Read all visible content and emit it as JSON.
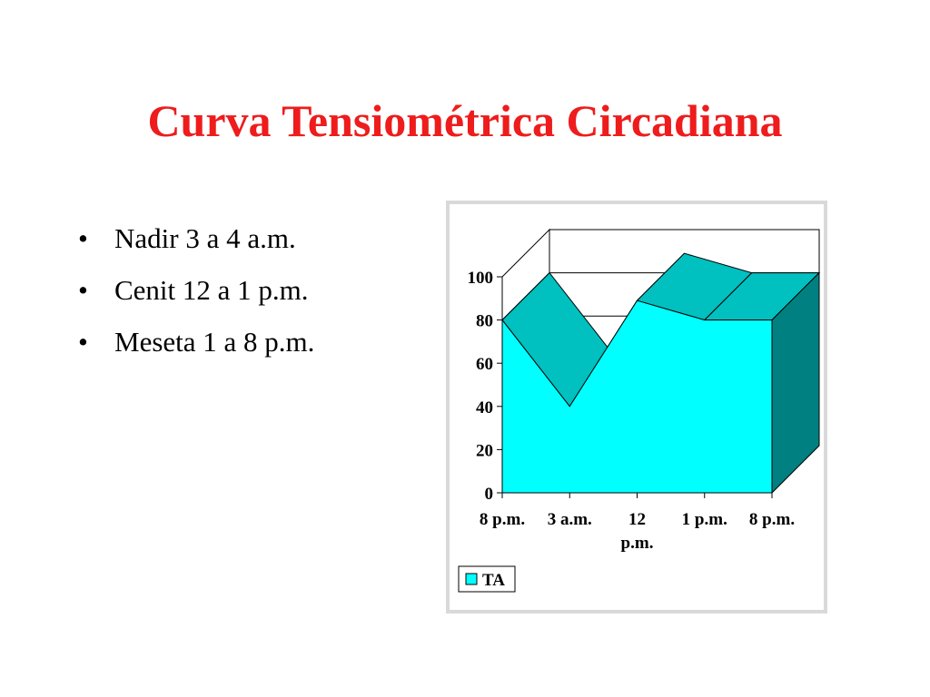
{
  "slide": {
    "title": "Curva Tensiométrica Circadiana",
    "bullets": [
      "Nadir 3 a 4 a.m.",
      "Cenit 12 a 1 p.m.",
      "Meseta 1 a 8 p.m."
    ],
    "bullet_symbol": "•"
  },
  "chart_data": {
    "type": "area",
    "style": "3d",
    "categories": [
      "8 p.m.",
      "3 a.m.",
      "12 p.m.",
      "1 p.m.",
      "8 p.m."
    ],
    "series": [
      {
        "name": "TA",
        "values": [
          80,
          40,
          89,
          80,
          80
        ],
        "color": "#00ffff"
      }
    ],
    "yticks": [
      "0",
      "20",
      "40",
      "60",
      "80",
      "100"
    ],
    "ylim": [
      0,
      100
    ],
    "grid": true,
    "legend": {
      "position": "bottom-left",
      "label": "TA"
    },
    "colors": {
      "front": "#00ffff",
      "top": "#00c0c0",
      "side": "#008080",
      "frame": "#d9d9d9"
    }
  }
}
